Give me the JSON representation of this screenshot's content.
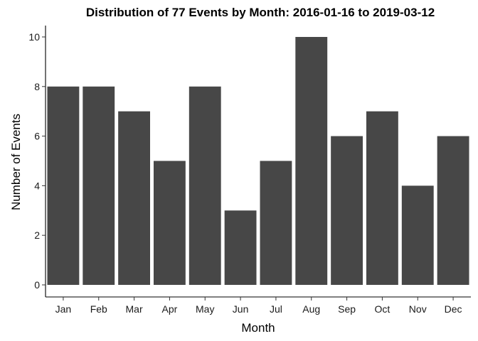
{
  "chart_data": {
    "type": "bar",
    "title": "Distribution of 77 Events by Month: 2016-01-16 to 2019-03-12",
    "xlabel": "Month",
    "ylabel": "Number of Events",
    "categories": [
      "Jan",
      "Feb",
      "Mar",
      "Apr",
      "May",
      "Jun",
      "Jul",
      "Aug",
      "Sep",
      "Oct",
      "Nov",
      "Dec"
    ],
    "values": [
      8,
      8,
      7,
      5,
      8,
      3,
      5,
      10,
      6,
      7,
      4,
      6
    ],
    "ylim": [
      0,
      10
    ],
    "yticks": [
      0,
      2,
      4,
      6,
      8,
      10
    ],
    "bar_color": "#474747",
    "grid": false,
    "legend": "none"
  }
}
